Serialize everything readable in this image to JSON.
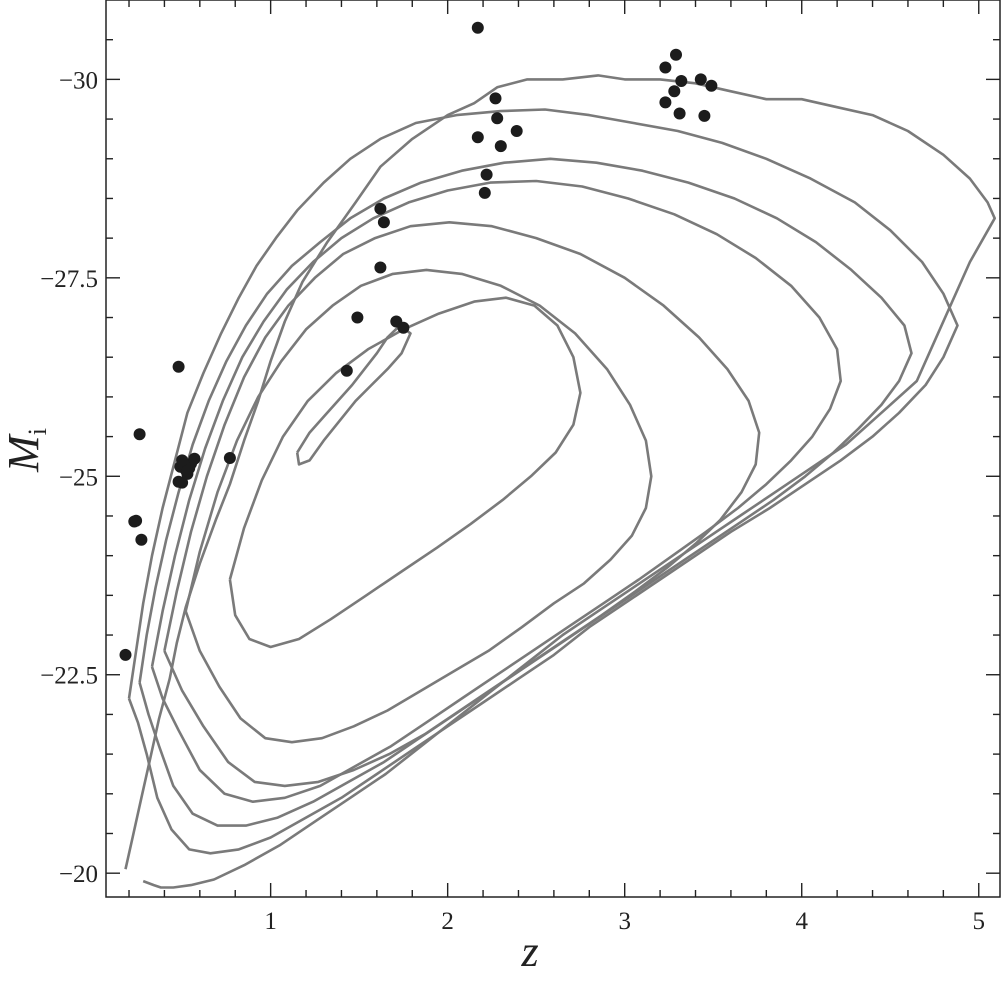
{
  "chart_data": {
    "type": "scatter",
    "title": "",
    "xlabel": "z",
    "ylabel": "M",
    "ylabel_subscript": "i",
    "xlim": [
      0.07,
      5.12
    ],
    "ylim": [
      -19.7,
      -31.0
    ],
    "y_inverted": true,
    "grid": false,
    "legend": "none",
    "x_ticks": [
      1,
      2,
      3,
      4,
      5
    ],
    "x_tick_labels": [
      "1",
      "2",
      "3",
      "4",
      "5"
    ],
    "y_ticks": [
      -30,
      -27.5,
      -25,
      -22.5,
      -20
    ],
    "y_tick_labels": [
      "−30",
      "−27.5",
      "−25",
      "−22.5",
      "−20"
    ],
    "colors": {
      "contour": "#7a7a7a",
      "points": "#1c1c1c",
      "axes": "#222222"
    },
    "series": [
      {
        "kind": "points",
        "x": [
          0.27,
          0.23,
          0.24,
          0.18,
          0.48,
          0.26,
          0.48,
          0.5,
          0.52,
          0.53,
          0.49,
          0.51,
          0.54,
          0.55,
          0.57,
          0.5,
          0.53,
          0.77,
          1.43,
          1.49,
          1.62,
          1.62,
          1.64,
          1.71,
          1.75,
          2.17,
          2.17,
          2.21,
          2.22,
          2.27,
          2.28,
          2.3,
          2.39,
          3.23,
          3.23,
          3.28,
          3.29,
          3.31,
          3.32,
          3.43,
          3.45,
          3.49
        ],
        "y": [
          -24.2,
          -24.43,
          -24.44,
          -22.75,
          -26.38,
          -25.53,
          -24.93,
          -24.92,
          -25.08,
          -25.03,
          -25.12,
          -25.13,
          -25.1,
          -25.16,
          -25.22,
          -25.2,
          -25.07,
          -25.23,
          -26.33,
          -27.0,
          -27.63,
          -28.37,
          -28.2,
          -26.95,
          -26.87,
          -30.65,
          -29.27,
          -28.57,
          -28.8,
          -29.76,
          -29.51,
          -29.16,
          -29.35,
          -29.71,
          -30.15,
          -29.85,
          -30.31,
          -29.57,
          -29.98,
          -30.0,
          -29.54,
          -29.92
        ]
      }
    ],
    "contours": [
      {
        "level": 1,
        "x": [
          0.18,
          0.22,
          0.27,
          0.32,
          0.37,
          0.43,
          0.47,
          0.52,
          0.6,
          0.69,
          0.77,
          0.85,
          0.93,
          1.0,
          1.08,
          1.18,
          1.32,
          1.48,
          1.62,
          1.8,
          2.0,
          2.15,
          2.28,
          2.45,
          2.65,
          2.85,
          3.0,
          3.2,
          3.4,
          3.6,
          3.8,
          4.0,
          4.2,
          4.4,
          4.6,
          4.8,
          4.95,
          5.05,
          5.09,
          4.95,
          4.85,
          4.75,
          4.65,
          4.45,
          4.25,
          4.05,
          3.85,
          3.65,
          3.45,
          3.25,
          3.05,
          2.85,
          2.65,
          2.45,
          2.25,
          2.05,
          1.85,
          1.65,
          1.45,
          1.25,
          1.05,
          0.85,
          0.68,
          0.55,
          0.45,
          0.38,
          0.34,
          0.28
        ],
        "y": [
          -20.05,
          -20.45,
          -20.95,
          -21.45,
          -21.95,
          -22.45,
          -22.9,
          -23.35,
          -23.9,
          -24.45,
          -24.9,
          -25.45,
          -25.95,
          -26.45,
          -26.95,
          -27.45,
          -27.95,
          -28.45,
          -28.9,
          -29.25,
          -29.55,
          -29.7,
          -29.9,
          -30.0,
          -30.0,
          -30.05,
          -30.0,
          -30.0,
          -29.95,
          -29.85,
          -29.75,
          -29.75,
          -29.65,
          -29.55,
          -29.35,
          -29.05,
          -28.75,
          -28.45,
          -28.25,
          -27.7,
          -27.2,
          -26.7,
          -26.2,
          -25.8,
          -25.4,
          -25.1,
          -24.8,
          -24.5,
          -24.2,
          -23.9,
          -23.6,
          -23.3,
          -23.0,
          -22.65,
          -22.3,
          -21.95,
          -21.6,
          -21.25,
          -20.95,
          -20.65,
          -20.35,
          -20.1,
          -19.92,
          -19.85,
          -19.82,
          -19.82,
          -19.85,
          -19.9
        ],
        "closed": false
      },
      {
        "level": 2,
        "x": [
          0.2,
          0.24,
          0.28,
          0.33,
          0.39,
          0.46,
          0.53,
          0.62,
          0.72,
          0.82,
          0.92,
          1.03,
          1.15,
          1.3,
          1.45,
          1.62,
          1.82,
          2.05,
          2.3,
          2.55,
          2.8,
          3.05,
          3.3,
          3.55,
          3.8,
          4.05,
          4.3,
          4.5,
          4.68,
          4.8,
          4.88,
          4.8,
          4.7,
          4.55,
          4.4,
          4.22,
          4.02,
          3.82,
          3.6,
          3.4,
          3.2,
          3.0,
          2.8,
          2.6,
          2.4,
          2.2,
          2.0,
          1.8,
          1.6,
          1.4,
          1.2,
          1.0,
          0.82,
          0.66,
          0.54,
          0.44,
          0.36,
          0.3,
          0.25
        ],
        "y": [
          -22.2,
          -22.8,
          -23.4,
          -24.0,
          -24.6,
          -25.2,
          -25.8,
          -26.3,
          -26.8,
          -27.25,
          -27.65,
          -28.0,
          -28.35,
          -28.7,
          -29.0,
          -29.25,
          -29.45,
          -29.55,
          -29.6,
          -29.62,
          -29.55,
          -29.45,
          -29.35,
          -29.2,
          -29.0,
          -28.75,
          -28.45,
          -28.1,
          -27.7,
          -27.3,
          -26.9,
          -26.5,
          -26.15,
          -25.8,
          -25.5,
          -25.2,
          -24.9,
          -24.6,
          -24.3,
          -24.0,
          -23.7,
          -23.4,
          -23.1,
          -22.75,
          -22.45,
          -22.15,
          -21.85,
          -21.55,
          -21.25,
          -20.95,
          -20.7,
          -20.45,
          -20.3,
          -20.25,
          -20.3,
          -20.55,
          -20.95,
          -21.5,
          -21.9
        ],
        "closed": true
      },
      {
        "level": 3,
        "x": [
          0.26,
          0.3,
          0.35,
          0.41,
          0.48,
          0.56,
          0.65,
          0.75,
          0.86,
          0.98,
          1.12,
          1.28,
          1.45,
          1.64,
          1.85,
          2.08,
          2.32,
          2.58,
          2.84,
          3.1,
          3.36,
          3.62,
          3.86,
          4.08,
          4.28,
          4.45,
          4.58,
          4.62,
          4.55,
          4.45,
          4.32,
          4.18,
          4.02,
          3.84,
          3.64,
          3.44,
          3.24,
          3.04,
          2.84,
          2.64,
          2.44,
          2.24,
          2.04,
          1.84,
          1.64,
          1.44,
          1.24,
          1.04,
          0.86,
          0.7,
          0.56,
          0.45,
          0.37,
          0.31
        ],
        "y": [
          -22.4,
          -23.0,
          -23.6,
          -24.2,
          -24.8,
          -25.4,
          -25.95,
          -26.45,
          -26.9,
          -27.3,
          -27.65,
          -27.95,
          -28.25,
          -28.5,
          -28.7,
          -28.85,
          -28.95,
          -29.0,
          -28.95,
          -28.85,
          -28.7,
          -28.5,
          -28.25,
          -27.95,
          -27.6,
          -27.25,
          -26.9,
          -26.55,
          -26.2,
          -25.9,
          -25.6,
          -25.3,
          -25.0,
          -24.7,
          -24.4,
          -24.1,
          -23.8,
          -23.5,
          -23.2,
          -22.9,
          -22.6,
          -22.3,
          -22.0,
          -21.7,
          -21.4,
          -21.15,
          -20.9,
          -20.7,
          -20.6,
          -20.6,
          -20.75,
          -21.1,
          -21.6,
          -22.0
        ],
        "closed": true
      },
      {
        "level": 4,
        "x": [
          0.33,
          0.39,
          0.46,
          0.54,
          0.63,
          0.73,
          0.84,
          0.96,
          1.09,
          1.24,
          1.4,
          1.58,
          1.78,
          2.0,
          2.24,
          2.5,
          2.76,
          3.02,
          3.28,
          3.52,
          3.74,
          3.94,
          4.1,
          4.2,
          4.22,
          4.16,
          4.06,
          3.94,
          3.8,
          3.64,
          3.46,
          3.27,
          3.08,
          2.88,
          2.68,
          2.48,
          2.28,
          2.08,
          1.88,
          1.68,
          1.48,
          1.28,
          1.08,
          0.9,
          0.74,
          0.6,
          0.48,
          0.39
        ],
        "y": [
          -22.6,
          -23.3,
          -24.0,
          -24.7,
          -25.35,
          -25.95,
          -26.5,
          -26.95,
          -27.35,
          -27.7,
          -28.0,
          -28.25,
          -28.45,
          -28.6,
          -28.7,
          -28.72,
          -28.65,
          -28.5,
          -28.3,
          -28.05,
          -27.75,
          -27.4,
          -27.0,
          -26.6,
          -26.2,
          -25.85,
          -25.5,
          -25.2,
          -24.9,
          -24.6,
          -24.3,
          -24.0,
          -23.7,
          -23.4,
          -23.1,
          -22.8,
          -22.5,
          -22.2,
          -21.9,
          -21.6,
          -21.35,
          -21.1,
          -20.95,
          -20.9,
          -21.0,
          -21.3,
          -21.8,
          -22.2
        ],
        "closed": true
      },
      {
        "level": 5,
        "x": [
          0.4,
          0.47,
          0.55,
          0.64,
          0.74,
          0.85,
          0.97,
          1.1,
          1.25,
          1.41,
          1.59,
          1.79,
          2.01,
          2.25,
          2.5,
          2.75,
          3.0,
          3.22,
          3.42,
          3.58,
          3.7,
          3.76,
          3.74,
          3.66,
          3.54,
          3.4,
          3.24,
          3.06,
          2.87,
          2.67,
          2.47,
          2.27,
          2.07,
          1.87,
          1.67,
          1.47,
          1.27,
          1.08,
          0.91,
          0.76,
          0.62,
          0.5
        ],
        "y": [
          -22.8,
          -23.55,
          -24.3,
          -25.0,
          -25.65,
          -26.25,
          -26.75,
          -27.15,
          -27.5,
          -27.8,
          -28.0,
          -28.15,
          -28.2,
          -28.15,
          -28.0,
          -27.8,
          -27.5,
          -27.15,
          -26.75,
          -26.35,
          -25.95,
          -25.55,
          -25.15,
          -24.8,
          -24.45,
          -24.15,
          -23.85,
          -23.55,
          -23.25,
          -22.95,
          -22.65,
          -22.35,
          -22.05,
          -21.75,
          -21.5,
          -21.3,
          -21.15,
          -21.1,
          -21.15,
          -21.4,
          -21.85,
          -22.3
        ],
        "closed": true
      },
      {
        "level": 6,
        "x": [
          0.52,
          0.6,
          0.7,
          0.81,
          0.93,
          1.06,
          1.2,
          1.35,
          1.51,
          1.69,
          1.88,
          2.08,
          2.3,
          2.52,
          2.72,
          2.9,
          3.03,
          3.12,
          3.15,
          3.12,
          3.04,
          2.92,
          2.77,
          2.6,
          2.42,
          2.23,
          2.04,
          1.85,
          1.66,
          1.47,
          1.29,
          1.12,
          0.97,
          0.83,
          0.71,
          0.6
        ],
        "y": [
          -23.3,
          -24.05,
          -24.8,
          -25.45,
          -26.0,
          -26.45,
          -26.85,
          -27.15,
          -27.4,
          -27.55,
          -27.6,
          -27.55,
          -27.4,
          -27.15,
          -26.8,
          -26.35,
          -25.9,
          -25.45,
          -25.0,
          -24.6,
          -24.25,
          -23.95,
          -23.65,
          -23.4,
          -23.1,
          -22.8,
          -22.55,
          -22.3,
          -22.05,
          -21.85,
          -21.7,
          -21.65,
          -21.7,
          -21.95,
          -22.35,
          -22.8
        ],
        "closed": true
      },
      {
        "level": 7,
        "x": [
          0.77,
          0.85,
          0.95,
          1.07,
          1.21,
          1.37,
          1.55,
          1.75,
          1.95,
          2.15,
          2.33,
          2.49,
          2.62,
          2.71,
          2.75,
          2.71,
          2.61,
          2.47,
          2.31,
          2.13,
          1.94,
          1.74,
          1.54,
          1.34,
          1.16,
          1.0,
          0.88,
          0.8
        ],
        "y": [
          -23.7,
          -24.35,
          -24.95,
          -25.5,
          -25.95,
          -26.3,
          -26.6,
          -26.85,
          -27.05,
          -27.2,
          -27.25,
          -27.15,
          -26.9,
          -26.5,
          -26.05,
          -25.65,
          -25.3,
          -25.0,
          -24.7,
          -24.4,
          -24.1,
          -23.8,
          -23.5,
          -23.2,
          -22.95,
          -22.85,
          -22.95,
          -23.25
        ],
        "closed": true
      },
      {
        "level": 8,
        "x": [
          1.15,
          1.22,
          1.3,
          1.38,
          1.46,
          1.53,
          1.6,
          1.66,
          1.73,
          1.79,
          1.74,
          1.66,
          1.57,
          1.48,
          1.39,
          1.3,
          1.22,
          1.16
        ],
        "y": [
          -25.3,
          -25.55,
          -25.75,
          -25.95,
          -26.15,
          -26.35,
          -26.55,
          -26.75,
          -26.9,
          -26.8,
          -26.55,
          -26.35,
          -26.15,
          -25.95,
          -25.7,
          -25.45,
          -25.2,
          -25.15
        ],
        "closed": true
      }
    ]
  }
}
